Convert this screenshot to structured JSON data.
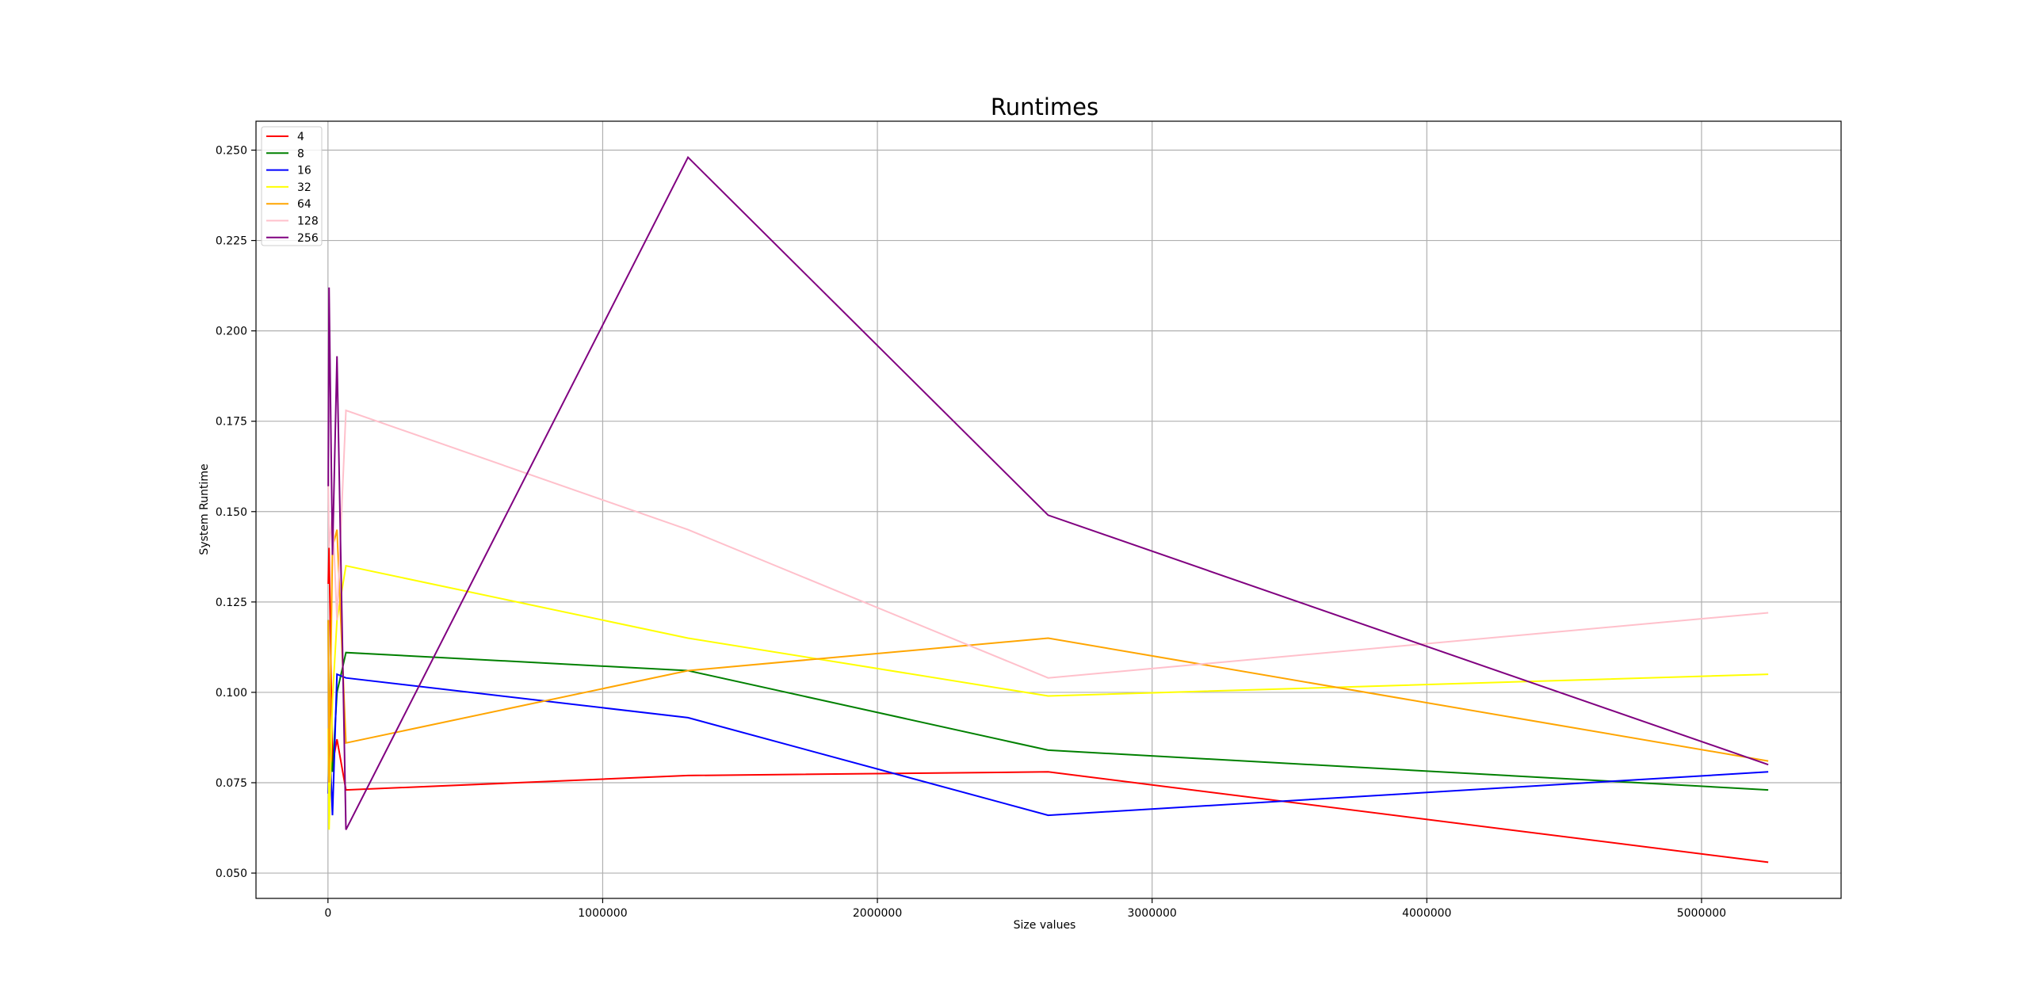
{
  "chart_data": {
    "type": "line",
    "title": "Runtimes",
    "xlabel": "Size values",
    "ylabel": "System Runtime",
    "xlim": [
      -262000,
      5508000
    ],
    "ylim": [
      0.043,
      0.258
    ],
    "xticks": [
      0,
      1000000,
      2000000,
      3000000,
      4000000,
      5000000
    ],
    "xtick_labels": [
      "0",
      "1000000",
      "2000000",
      "3000000",
      "4000000",
      "5000000"
    ],
    "yticks": [
      0.05,
      0.075,
      0.1,
      0.125,
      0.15,
      0.175,
      0.2,
      0.225,
      0.25
    ],
    "ytick_labels": [
      "0.050",
      "0.075",
      "0.100",
      "0.125",
      "0.150",
      "0.175",
      "0.200",
      "0.225",
      "0.250"
    ],
    "grid": true,
    "legend_position": "top-left",
    "x": [
      1024,
      4096,
      16384,
      32768,
      65536,
      1310720,
      2621440,
      5242880
    ],
    "series": [
      {
        "name": "4",
        "color": "#ff0000",
        "values": [
          0.13,
          0.14,
          0.08,
          0.087,
          0.073,
          0.077,
          0.078,
          0.053
        ]
      },
      {
        "name": "8",
        "color": "#008000",
        "values": [
          0.12,
          0.085,
          0.078,
          0.1,
          0.111,
          0.106,
          0.084,
          0.073
        ]
      },
      {
        "name": "16",
        "color": "#0000ff",
        "values": [
          0.072,
          0.09,
          0.066,
          0.105,
          0.104,
          0.093,
          0.066,
          0.078
        ]
      },
      {
        "name": "32",
        "color": "#ffff00",
        "values": [
          0.09,
          0.062,
          0.098,
          0.12,
          0.135,
          0.115,
          0.099,
          0.105
        ]
      },
      {
        "name": "64",
        "color": "#ffa500",
        "values": [
          0.12,
          0.075,
          0.14,
          0.145,
          0.086,
          0.106,
          0.115,
          0.081
        ]
      },
      {
        "name": "128",
        "color": "#ffc0cb",
        "values": [
          0.16,
          0.14,
          0.15,
          0.12,
          0.178,
          0.145,
          0.104,
          0.122
        ]
      },
      {
        "name": "256",
        "color": "#800080",
        "values": [
          0.157,
          0.212,
          0.138,
          0.193,
          0.062,
          0.248,
          0.149,
          0.08
        ]
      }
    ]
  }
}
